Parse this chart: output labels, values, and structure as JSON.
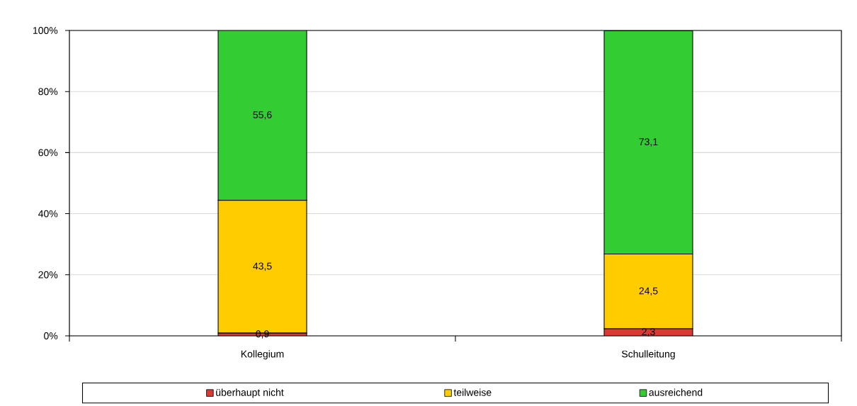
{
  "chart_data": {
    "type": "bar",
    "stacked": true,
    "categories": [
      "Kollegium",
      "Schulleitung"
    ],
    "series": [
      {
        "name": "überhaupt nicht",
        "color": "#d93a33",
        "values": [
          0.9,
          2.3
        ],
        "value_labels": [
          "0,9",
          "2,3"
        ]
      },
      {
        "name": "teilweise",
        "color": "#ffcc00",
        "values": [
          43.5,
          24.5
        ],
        "value_labels": [
          "43,5",
          "24,5"
        ]
      },
      {
        "name": "ausreichend",
        "color": "#33cc33",
        "values": [
          55.6,
          73.1
        ],
        "value_labels": [
          "55,6",
          "73,1"
        ]
      }
    ],
    "ylim": [
      0,
      100
    ],
    "yticks": [
      {
        "value": 0,
        "label": "0%"
      },
      {
        "value": 20,
        "label": "20%"
      },
      {
        "value": 40,
        "label": "40%"
      },
      {
        "value": 60,
        "label": "60%"
      },
      {
        "value": 80,
        "label": "80%"
      },
      {
        "value": 100,
        "label": "100%"
      }
    ],
    "grid": "y",
    "legend": "bottom"
  }
}
